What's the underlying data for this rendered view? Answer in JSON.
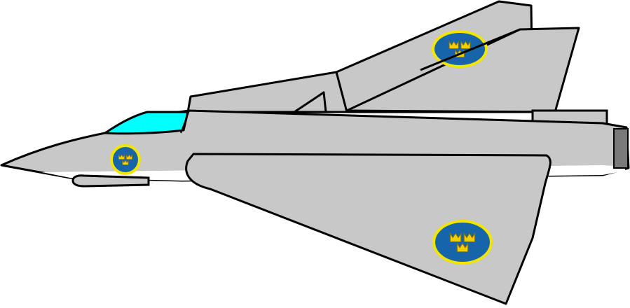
{
  "image": {
    "subject": "swedish-delta-wing-fighter-jet-side-view",
    "background_color": "#ffffff"
  },
  "colors": {
    "fuselage": "#c8c8c8",
    "outline": "#000000",
    "canopy": "#00ffff",
    "belly_highlight": "#ffffff",
    "exhaust": "#7a7a7a",
    "roundel_blue": "#1565a8",
    "roundel_ring": "#f2e600",
    "crown_yellow": "#f2d000"
  },
  "icons": {
    "roundel": "three-crowns-roundel-icon",
    "crown": "crown-icon"
  }
}
